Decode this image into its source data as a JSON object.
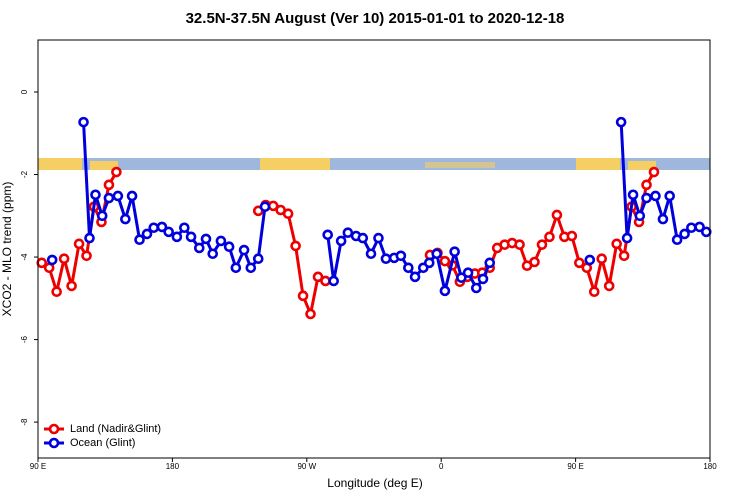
{
  "chart_data": {
    "type": "line",
    "title": "32.5N-37.5N August (Ver 10)   2015-01-01 to 2020-12-18",
    "xlabel": "Longitude (deg E)",
    "ylabel": "XCO2 - MLO trend (ppm)",
    "xlim": [
      90,
      540
    ],
    "ylim": [
      -8.87,
      1.26
    ],
    "xticks": [
      {
        "value": 90,
        "label": "90 E"
      },
      180,
      {
        "value": 270,
        "label": "90 W"
      },
      {
        "value": 360,
        "label": "0"
      },
      {
        "value": 450,
        "label": "90 E"
      },
      {
        "value": 540,
        "label": "180"
      }
    ],
    "yticks": [
      0,
      -2,
      -4,
      -6,
      -8
    ],
    "legend": "bottom-left",
    "series": [
      {
        "name": "Land (Nadir&Glint)",
        "color": "#ee0000",
        "x": [
          92.5,
          97.5,
          102.5,
          107.5,
          112.5,
          117.5,
          122.5,
          127.5,
          132.5,
          137.5,
          142.5,
          null,
          237.5,
          242.5,
          247.5,
          252.5,
          257.5,
          262.5,
          267.5,
          272.5,
          277.5,
          282.5,
          null,
          352.5,
          357.5,
          362.5,
          367.5,
          372.5,
          377.5,
          382.5,
          387.5,
          392.5,
          397.5,
          402.5,
          407.5,
          412.5,
          417.5,
          422.5,
          427.5,
          432.5,
          437.5,
          442.5,
          447.5,
          452.5,
          457.5,
          462.5,
          467.5,
          472.5,
          477.5,
          482.5,
          487.5,
          492.5,
          497.5,
          502.5
        ],
        "values": [
          -4.14,
          -4.26,
          -4.84,
          -4.04,
          -4.7,
          -3.68,
          -3.97,
          -2.78,
          -3.15,
          -2.25,
          -1.94,
          null,
          -2.88,
          -2.74,
          -2.76,
          -2.86,
          -2.95,
          -3.73,
          -4.94,
          -5.38,
          -4.48,
          -4.58,
          null,
          -3.95,
          -3.9,
          -4.1,
          -4.2,
          -4.6,
          -4.48,
          -4.4,
          -4.38,
          -4.26,
          -3.78,
          -3.7,
          -3.66,
          -3.7,
          -4.21,
          -4.12,
          -3.7,
          -3.51,
          -2.98,
          -3.51,
          -3.49,
          -4.14,
          -4.26,
          -4.84,
          -4.04,
          -4.7,
          -3.68,
          -3.97,
          -2.78,
          -3.15,
          -2.25,
          -1.94
        ]
      },
      {
        "name": "Ocean (Glint)",
        "color": "#0000dd",
        "x": [
          99.5,
          null,
          120.5,
          124.5,
          128.5,
          133,
          137.5,
          143.5,
          148.5,
          153,
          158,
          163,
          167.5,
          173,
          177.5,
          183,
          188,
          192.5,
          198,
          202.5,
          207,
          212.5,
          218,
          222.5,
          228,
          232.5,
          237.5,
          242,
          null,
          284,
          288,
          293,
          297.5,
          303,
          307.5,
          313,
          318,
          323,
          328.5,
          333,
          338,
          342.5,
          348,
          352,
          357,
          362.5,
          369,
          373.5,
          378,
          383.5,
          388,
          392.5,
          null,
          459.5,
          null,
          480.5,
          484.5,
          488.5,
          493,
          497.5,
          503.5,
          508.5,
          513,
          518,
          523,
          527.5,
          533,
          537.5
        ],
        "values": [
          -4.07,
          null,
          -0.73,
          -3.54,
          -2.49,
          -3.0,
          -2.57,
          -2.52,
          -3.08,
          -2.52,
          -3.58,
          -3.44,
          -3.29,
          -3.27,
          -3.39,
          -3.51,
          -3.29,
          -3.51,
          -3.78,
          -3.56,
          -3.92,
          -3.61,
          -3.75,
          -4.26,
          -3.83,
          -4.26,
          -4.04,
          -2.78,
          null,
          -3.46,
          -4.58,
          -3.61,
          -3.41,
          -3.49,
          -3.54,
          -3.92,
          -3.54,
          -4.04,
          -4.02,
          -3.97,
          -4.26,
          -4.48,
          -4.26,
          -4.14,
          -3.92,
          -4.82,
          -3.87,
          -4.5,
          -4.38,
          -4.75,
          -4.53,
          -4.14,
          null,
          -4.07,
          null,
          -0.73,
          -3.54,
          -2.49,
          -3.0,
          -2.57,
          -2.52,
          -3.08,
          -2.52,
          -3.58,
          -3.44,
          -3.29,
          -3.27,
          -3.39
        ]
      }
    ]
  }
}
